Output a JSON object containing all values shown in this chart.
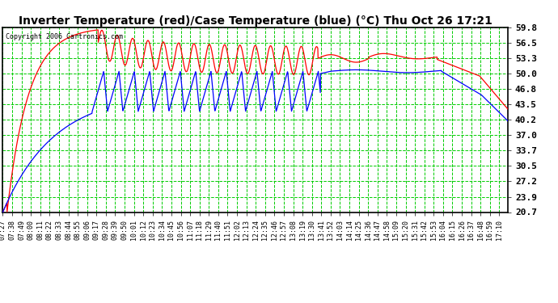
{
  "title": "Inverter Temperature (red)/Case Temperature (blue) (°C) Thu Oct 26 17:21",
  "copyright": "Copyright 2006 Cartronics.com",
  "plot_bg_color": "#ffffff",
  "grid_color": "#00cc00",
  "red_color": "#ff0000",
  "blue_color": "#0000ff",
  "yticks": [
    20.7,
    23.9,
    27.2,
    30.5,
    33.7,
    37.0,
    40.2,
    43.5,
    46.8,
    50.0,
    53.3,
    56.5,
    59.8
  ],
  "ylim": [
    20.7,
    59.8
  ],
  "fig_bg_color": "#ffffff",
  "border_color": "#000000",
  "title_fontsize": 10,
  "copyright_fontsize": 6,
  "tick_fontsize": 6,
  "ytick_fontsize": 8
}
